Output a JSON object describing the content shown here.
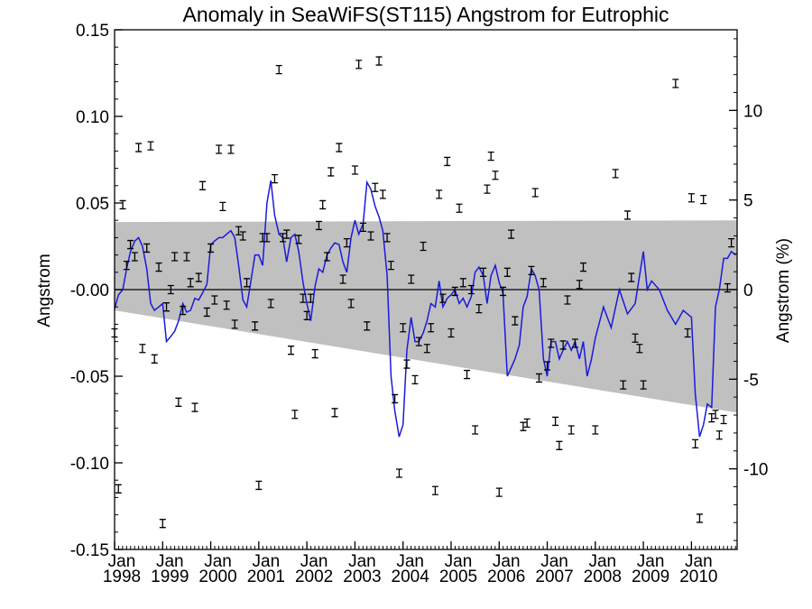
{
  "chart_data": {
    "type": "line",
    "title": "Anomaly in SeaWiFS(ST115) Angstrom for Eutrophic",
    "ylabel": "Angstrom",
    "ylabel_right": "Angstrom (%)",
    "xlim": [
      1998.0,
      2010.95
    ],
    "ylim": [
      -0.15,
      0.15
    ],
    "ylim_right": [
      -14.5,
      14.5
    ],
    "yticks": [
      {
        "value": 0.15,
        "label": "0.15"
      },
      {
        "value": 0.1,
        "label": "0.10"
      },
      {
        "value": 0.05,
        "label": "0.05"
      },
      {
        "value": 0.0,
        "label": "-0.00"
      },
      {
        "value": -0.05,
        "label": "-0.05"
      },
      {
        "value": -0.1,
        "label": "-0.10"
      },
      {
        "value": -0.15,
        "label": "-0.15"
      }
    ],
    "yticks_right": [
      {
        "value": 10,
        "label": "10"
      },
      {
        "value": 5,
        "label": "5"
      },
      {
        "value": 0,
        "label": "0"
      },
      {
        "value": -5,
        "label": "-5"
      },
      {
        "value": -10,
        "label": "-10"
      }
    ],
    "xticks": [
      {
        "value": 1998,
        "month": "Jan",
        "year": "1998"
      },
      {
        "value": 1999,
        "month": "Jan",
        "year": "1999"
      },
      {
        "value": 2000,
        "month": "Jan",
        "year": "2000"
      },
      {
        "value": 2001,
        "month": "Jan",
        "year": "2001"
      },
      {
        "value": 2002,
        "month": "Jan",
        "year": "2002"
      },
      {
        "value": 2003,
        "month": "Jan",
        "year": "2003"
      },
      {
        "value": 2004,
        "month": "Jan",
        "year": "2004"
      },
      {
        "value": 2005,
        "month": "Jan",
        "year": "2005"
      },
      {
        "value": 2006,
        "month": "Jan",
        "year": "2006"
      },
      {
        "value": 2007,
        "month": "Jan",
        "year": "2007"
      },
      {
        "value": 2008,
        "month": "Jan",
        "year": "2008"
      },
      {
        "value": 2009,
        "month": "Jan",
        "year": "2009"
      },
      {
        "value": 2010,
        "month": "Jan",
        "year": "2010"
      }
    ],
    "band": {
      "x": [
        1998.0,
        2010.95
      ],
      "upper": [
        0.039,
        0.04
      ],
      "lower": [
        -0.012,
        -0.071
      ]
    },
    "zero_line": 0,
    "series": [
      {
        "color": "#1a1adc",
        "x": [
          1998.0,
          1998.08,
          1998.17,
          1998.25,
          1998.33,
          1998.42,
          1998.5,
          1998.58,
          1998.67,
          1998.75,
          1998.83,
          1998.92,
          1999.0,
          1999.08,
          1999.17,
          1999.25,
          1999.33,
          1999.42,
          1999.5,
          1999.58,
          1999.67,
          1999.75,
          1999.83,
          1999.92,
          2000.0,
          2000.08,
          2000.17,
          2000.25,
          2000.33,
          2000.42,
          2000.5,
          2000.58,
          2000.67,
          2000.75,
          2000.83,
          2000.92,
          2001.0,
          2001.08,
          2001.17,
          2001.25,
          2001.33,
          2001.42,
          2001.5,
          2001.58,
          2001.67,
          2001.75,
          2001.83,
          2001.92,
          2002.0,
          2002.08,
          2002.17,
          2002.25,
          2002.33,
          2002.42,
          2002.5,
          2002.58,
          2002.67,
          2002.75,
          2002.83,
          2002.92,
          2003.0,
          2003.08,
          2003.17,
          2003.25,
          2003.33,
          2003.42,
          2003.5,
          2003.58,
          2003.67,
          2003.75,
          2003.83,
          2003.92,
          2004.0,
          2004.08,
          2004.17,
          2004.25,
          2004.33,
          2004.42,
          2004.5,
          2004.58,
          2004.67,
          2004.75,
          2004.83,
          2004.92,
          2005.0,
          2005.08,
          2005.17,
          2005.25,
          2005.33,
          2005.42,
          2005.5,
          2005.58,
          2005.67,
          2005.75,
          2005.83,
          2005.92,
          2006.0,
          2006.08,
          2006.17,
          2006.25,
          2006.33,
          2006.42,
          2006.5,
          2006.58,
          2006.67,
          2006.75,
          2006.83,
          2006.92,
          2007.0,
          2007.08,
          2007.17,
          2007.25,
          2007.33,
          2007.42,
          2007.5,
          2007.58,
          2007.67,
          2007.75,
          2007.83,
          2007.92,
          2008.0,
          2008.17,
          2008.33,
          2008.5,
          2008.67,
          2008.83,
          2009.0,
          2009.08,
          2009.17,
          2009.33,
          2009.5,
          2009.67,
          2009.83,
          2010.0,
          2010.08,
          2010.17,
          2010.25,
          2010.33,
          2010.42,
          2010.5,
          2010.58,
          2010.67,
          2010.75,
          2010.83,
          2010.92
        ],
        "y": [
          -0.011,
          -0.003,
          0.0,
          0.012,
          0.022,
          0.028,
          0.03,
          0.025,
          0.012,
          -0.008,
          -0.012,
          -0.01,
          -0.008,
          -0.03,
          -0.027,
          -0.024,
          -0.018,
          -0.008,
          -0.013,
          -0.012,
          -0.005,
          -0.006,
          -0.002,
          0.003,
          0.026,
          0.028,
          0.03,
          0.03,
          0.032,
          0.034,
          0.03,
          0.014,
          -0.006,
          -0.01,
          0.004,
          0.02,
          0.02,
          0.014,
          0.05,
          0.063,
          0.043,
          0.032,
          0.03,
          0.016,
          0.03,
          0.032,
          0.022,
          0.004,
          -0.008,
          -0.018,
          0.002,
          0.012,
          0.01,
          0.02,
          0.024,
          0.027,
          0.026,
          0.016,
          0.01,
          0.03,
          0.04,
          0.032,
          0.038,
          0.062,
          0.058,
          0.048,
          0.042,
          0.034,
          0.008,
          -0.05,
          -0.07,
          -0.085,
          -0.078,
          -0.035,
          -0.016,
          -0.03,
          -0.03,
          -0.025,
          -0.018,
          -0.008,
          -0.01,
          0.005,
          -0.01,
          -0.005,
          -0.003,
          0.0,
          -0.008,
          -0.005,
          -0.01,
          -0.004,
          0.01,
          0.013,
          0.008,
          -0.008,
          0.008,
          0.014,
          0.004,
          -0.002,
          -0.05,
          -0.045,
          -0.04,
          -0.032,
          -0.01,
          -0.004,
          0.012,
          0.008,
          0.0,
          -0.04,
          -0.05,
          -0.03,
          -0.03,
          -0.04,
          -0.035,
          -0.03,
          -0.035,
          -0.03,
          -0.04,
          -0.03,
          -0.05,
          -0.04,
          -0.028,
          -0.01,
          -0.022,
          0.0,
          -0.014,
          -0.008,
          0.022,
          0.0,
          0.005,
          0.0,
          -0.012,
          -0.02,
          -0.012,
          -0.016,
          -0.06,
          -0.085,
          -0.078,
          -0.066,
          -0.068,
          -0.01,
          0.0,
          0.018,
          0.018,
          0.022,
          0.02
        ]
      }
    ],
    "points": [
      {
        "x": 1998.0,
        "y": -0.025
      },
      {
        "x": 1998.08,
        "y": -0.115
      },
      {
        "x": 1998.17,
        "y": 0.049
      },
      {
        "x": 1998.25,
        "y": 0.014
      },
      {
        "x": 1998.33,
        "y": 0.026
      },
      {
        "x": 1998.42,
        "y": 0.019
      },
      {
        "x": 1998.5,
        "y": 0.082
      },
      {
        "x": 1998.58,
        "y": -0.034
      },
      {
        "x": 1998.67,
        "y": 0.024
      },
      {
        "x": 1998.75,
        "y": 0.083
      },
      {
        "x": 1998.83,
        "y": -0.04
      },
      {
        "x": 1998.92,
        "y": 0.013
      },
      {
        "x": 1999.0,
        "y": -0.135
      },
      {
        "x": 1999.08,
        "y": -0.01
      },
      {
        "x": 1999.17,
        "y": 0.0
      },
      {
        "x": 1999.25,
        "y": 0.019
      },
      {
        "x": 1999.33,
        "y": -0.065
      },
      {
        "x": 1999.42,
        "y": -0.012
      },
      {
        "x": 1999.5,
        "y": 0.019
      },
      {
        "x": 1999.58,
        "y": 0.004
      },
      {
        "x": 1999.67,
        "y": -0.068
      },
      {
        "x": 1999.75,
        "y": 0.007
      },
      {
        "x": 1999.83,
        "y": 0.06
      },
      {
        "x": 1999.92,
        "y": -0.013
      },
      {
        "x": 2000.0,
        "y": 0.024
      },
      {
        "x": 2000.08,
        "y": -0.006
      },
      {
        "x": 2000.17,
        "y": 0.081
      },
      {
        "x": 2000.25,
        "y": 0.048
      },
      {
        "x": 2000.33,
        "y": -0.009
      },
      {
        "x": 2000.42,
        "y": 0.081
      },
      {
        "x": 2000.5,
        "y": -0.02
      },
      {
        "x": 2000.58,
        "y": 0.034
      },
      {
        "x": 2000.67,
        "y": 0.031
      },
      {
        "x": 2000.75,
        "y": 0.004
      },
      {
        "x": 2000.92,
        "y": -0.021
      },
      {
        "x": 2001.0,
        "y": -0.113
      },
      {
        "x": 2001.08,
        "y": 0.03
      },
      {
        "x": 2001.17,
        "y": 0.03
      },
      {
        "x": 2001.25,
        "y": -0.008
      },
      {
        "x": 2001.33,
        "y": 0.064
      },
      {
        "x": 2001.42,
        "y": 0.127
      },
      {
        "x": 2001.5,
        "y": 0.03
      },
      {
        "x": 2001.58,
        "y": 0.032
      },
      {
        "x": 2001.67,
        "y": -0.035
      },
      {
        "x": 2001.75,
        "y": -0.072
      },
      {
        "x": 2001.83,
        "y": 0.029
      },
      {
        "x": 2001.92,
        "y": -0.005
      },
      {
        "x": 2002.0,
        "y": -0.015
      },
      {
        "x": 2002.08,
        "y": -0.005
      },
      {
        "x": 2002.17,
        "y": -0.037
      },
      {
        "x": 2002.25,
        "y": 0.037
      },
      {
        "x": 2002.33,
        "y": 0.049
      },
      {
        "x": 2002.42,
        "y": 0.019
      },
      {
        "x": 2002.5,
        "y": 0.068
      },
      {
        "x": 2002.58,
        "y": -0.071
      },
      {
        "x": 2002.67,
        "y": 0.082
      },
      {
        "x": 2002.75,
        "y": 0.006
      },
      {
        "x": 2002.83,
        "y": 0.027
      },
      {
        "x": 2002.92,
        "y": -0.008
      },
      {
        "x": 2003.0,
        "y": 0.069
      },
      {
        "x": 2003.08,
        "y": 0.13
      },
      {
        "x": 2003.17,
        "y": 0.036
      },
      {
        "x": 2003.25,
        "y": -0.021
      },
      {
        "x": 2003.33,
        "y": 0.031
      },
      {
        "x": 2003.42,
        "y": 0.059
      },
      {
        "x": 2003.5,
        "y": 0.132
      },
      {
        "x": 2003.58,
        "y": 0.055
      },
      {
        "x": 2003.67,
        "y": 0.03
      },
      {
        "x": 2003.75,
        "y": 0.014
      },
      {
        "x": 2003.83,
        "y": -0.063
      },
      {
        "x": 2003.92,
        "y": -0.106
      },
      {
        "x": 2004.0,
        "y": -0.022
      },
      {
        "x": 2004.08,
        "y": -0.043
      },
      {
        "x": 2004.17,
        "y": 0.006
      },
      {
        "x": 2004.25,
        "y": -0.052
      },
      {
        "x": 2004.33,
        "y": -0.03
      },
      {
        "x": 2004.42,
        "y": 0.025
      },
      {
        "x": 2004.5,
        "y": -0.034
      },
      {
        "x": 2004.58,
        "y": -0.022
      },
      {
        "x": 2004.67,
        "y": -0.116
      },
      {
        "x": 2004.75,
        "y": 0.055
      },
      {
        "x": 2004.83,
        "y": -0.005
      },
      {
        "x": 2004.92,
        "y": 0.074
      },
      {
        "x": 2005.0,
        "y": -0.025
      },
      {
        "x": 2005.08,
        "y": -0.001
      },
      {
        "x": 2005.17,
        "y": 0.047
      },
      {
        "x": 2005.25,
        "y": 0.004
      },
      {
        "x": 2005.33,
        "y": -0.049
      },
      {
        "x": 2005.42,
        "y": 0.0
      },
      {
        "x": 2005.5,
        "y": -0.081
      },
      {
        "x": 2005.58,
        "y": -0.011
      },
      {
        "x": 2005.67,
        "y": 0.01
      },
      {
        "x": 2005.75,
        "y": 0.058
      },
      {
        "x": 2005.83,
        "y": 0.077
      },
      {
        "x": 2005.92,
        "y": 0.066
      },
      {
        "x": 2006.0,
        "y": -0.117
      },
      {
        "x": 2006.08,
        "y": -0.001
      },
      {
        "x": 2006.17,
        "y": 0.01
      },
      {
        "x": 2006.25,
        "y": 0.032
      },
      {
        "x": 2006.33,
        "y": -0.018
      },
      {
        "x": 2006.5,
        "y": -0.079
      },
      {
        "x": 2006.58,
        "y": -0.077
      },
      {
        "x": 2006.67,
        "y": 0.011
      },
      {
        "x": 2006.75,
        "y": 0.056
      },
      {
        "x": 2006.83,
        "y": -0.051
      },
      {
        "x": 2006.92,
        "y": 0.004
      },
      {
        "x": 2007.0,
        "y": -0.044
      },
      {
        "x": 2007.08,
        "y": -0.031
      },
      {
        "x": 2007.17,
        "y": -0.076
      },
      {
        "x": 2007.25,
        "y": -0.09
      },
      {
        "x": 2007.33,
        "y": -0.032
      },
      {
        "x": 2007.42,
        "y": -0.006
      },
      {
        "x": 2007.5,
        "y": -0.081
      },
      {
        "x": 2007.58,
        "y": -0.031
      },
      {
        "x": 2007.67,
        "y": 0.003
      },
      {
        "x": 2007.75,
        "y": 0.013
      },
      {
        "x": 2008.0,
        "y": -0.081
      },
      {
        "x": 2008.42,
        "y": 0.067
      },
      {
        "x": 2008.58,
        "y": -0.055
      },
      {
        "x": 2008.67,
        "y": 0.043
      },
      {
        "x": 2008.75,
        "y": 0.007
      },
      {
        "x": 2008.83,
        "y": -0.028
      },
      {
        "x": 2008.92,
        "y": -0.034
      },
      {
        "x": 2009.0,
        "y": -0.055
      },
      {
        "x": 2009.67,
        "y": 0.119
      },
      {
        "x": 2009.92,
        "y": -0.025
      },
      {
        "x": 2010.0,
        "y": 0.053
      },
      {
        "x": 2010.08,
        "y": -0.089
      },
      {
        "x": 2010.17,
        "y": -0.132
      },
      {
        "x": 2010.25,
        "y": 0.052
      },
      {
        "x": 2010.42,
        "y": -0.074
      },
      {
        "x": 2010.5,
        "y": -0.072
      },
      {
        "x": 2010.58,
        "y": -0.084
      },
      {
        "x": 2010.67,
        "y": -0.075
      },
      {
        "x": 2010.75,
        "y": 0.001
      },
      {
        "x": 2010.83,
        "y": 0.027
      }
    ],
    "grid": false,
    "legend": "none"
  }
}
